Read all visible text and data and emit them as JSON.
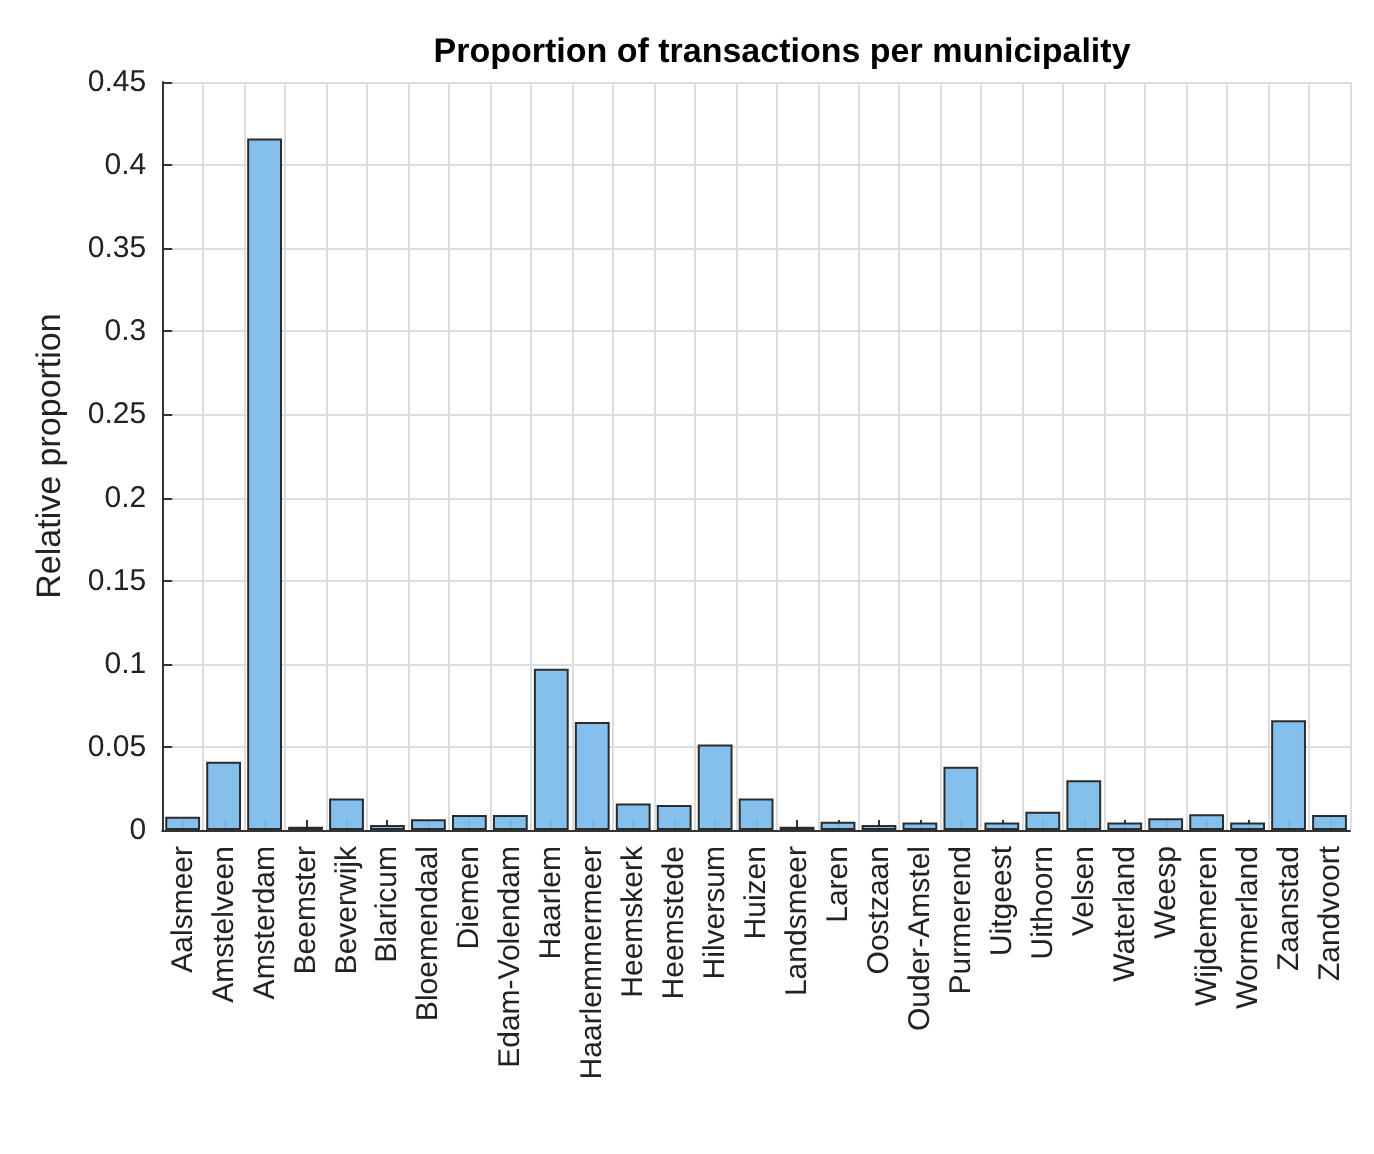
{
  "chart_data": {
    "type": "bar",
    "title": "Proportion of transactions per municipality",
    "ylabel": "Relative proportion",
    "categories": [
      "Aalsmeer",
      "Amstelveen",
      "Amsterdam",
      "Beemster",
      "Beverwijk",
      "Blaricum",
      "Bloemendaal",
      "Diemen",
      "Edam-Volendam",
      "Haarlem",
      "Haarlemmermeer",
      "Heemskerk",
      "Heemstede",
      "Hilversum",
      "Huizen",
      "Landsmeer",
      "Laren",
      "Oostzaan",
      "Ouder-Amstel",
      "Purmerend",
      "Uitgeest",
      "Uithoorn",
      "Velsen",
      "Waterland",
      "Weesp",
      "Wijdemeren",
      "Wormerland",
      "Zaanstad",
      "Zandvoort"
    ],
    "values": [
      0.008,
      0.041,
      0.416,
      0.002,
      0.019,
      0.003,
      0.0065,
      0.009,
      0.009,
      0.097,
      0.065,
      0.016,
      0.015,
      0.0515,
      0.019,
      0.002,
      0.005,
      0.003,
      0.0045,
      0.038,
      0.0045,
      0.011,
      0.03,
      0.0045,
      0.007,
      0.0095,
      0.0045,
      0.066,
      0.009
    ],
    "color": "#7dbdea",
    "ylim": [
      0,
      0.45
    ],
    "yticks": [
      0,
      0.05,
      0.1,
      0.15,
      0.2,
      0.25,
      0.3,
      0.35,
      0.4,
      0.45
    ],
    "grid": true
  }
}
